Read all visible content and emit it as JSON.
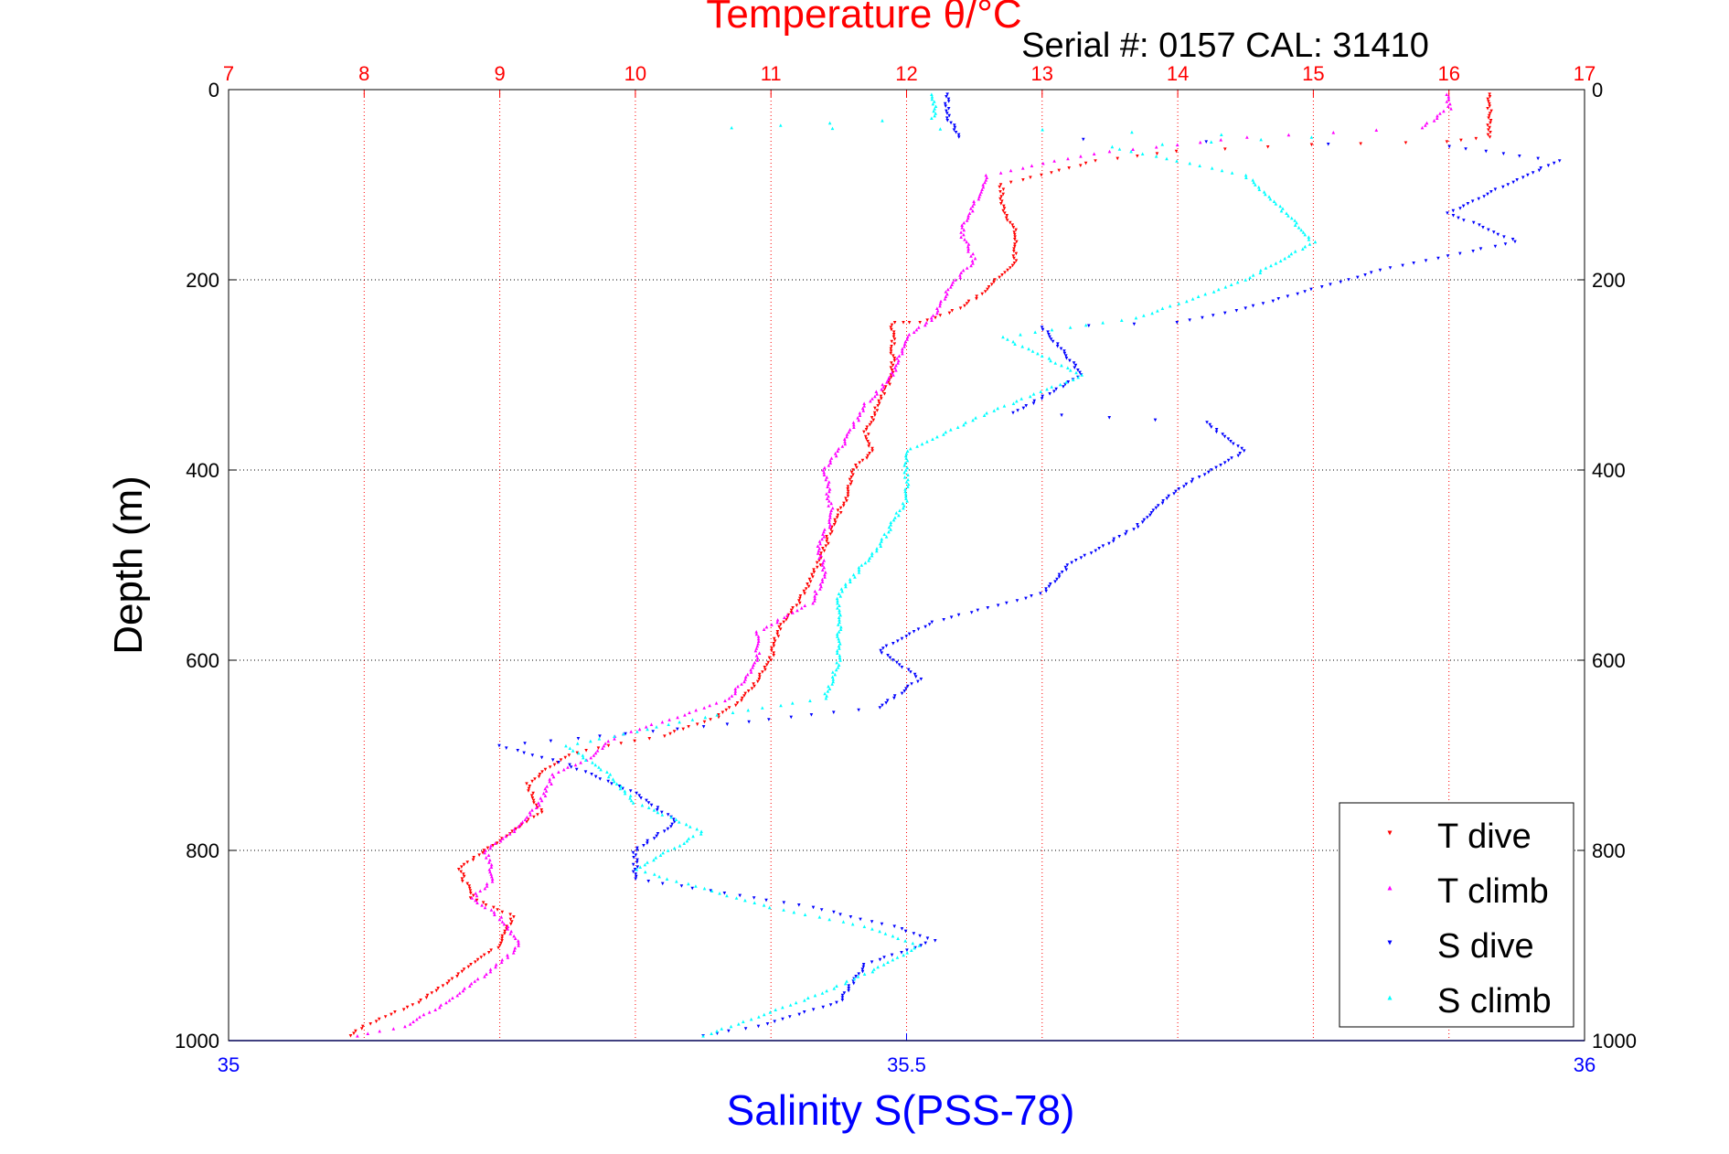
{
  "chart_data": {
    "type": "scatter",
    "title": "Temperature θ/°C",
    "subtitle": "Serial #: 0157  CAL: 31410",
    "ylabel": "Depth (m)",
    "xlabel": "Salinity S(PSS-78)",
    "y_axis": {
      "range": [
        0,
        1000
      ],
      "inverted": true,
      "ticks": [
        0,
        200,
        400,
        600,
        800,
        1000
      ],
      "grid": true
    },
    "x_temperature_axis": {
      "position": "top",
      "range": [
        7,
        17
      ],
      "ticks": [
        7,
        8,
        9,
        10,
        11,
        12,
        13,
        14,
        15,
        16,
        17
      ],
      "grid": true,
      "color": "#ff0000"
    },
    "x_salinity_axis": {
      "position": "bottom",
      "range": [
        35,
        36
      ],
      "ticks": [
        35,
        35.5,
        36
      ],
      "tick_labels": [
        "35",
        "35.5",
        "36"
      ],
      "color": "#0000ff"
    },
    "legend": {
      "position": "bottom-right",
      "entries": [
        "T dive",
        "T climb",
        "S dive",
        "S climb"
      ]
    },
    "series": [
      {
        "name": "T dive",
        "axis": "temperature",
        "color": "#ff0000",
        "marker": "down-triangle",
        "points": [
          [
            16.3,
            5
          ],
          [
            16.3,
            50
          ],
          [
            16.0,
            55
          ],
          [
            15.0,
            58
          ],
          [
            14.0,
            65
          ],
          [
            13.4,
            75
          ],
          [
            13.0,
            90
          ],
          [
            12.7,
            100
          ],
          [
            12.7,
            120
          ],
          [
            12.8,
            150
          ],
          [
            12.8,
            180
          ],
          [
            12.6,
            210
          ],
          [
            12.4,
            230
          ],
          [
            12.1,
            245
          ],
          [
            11.9,
            245
          ],
          [
            11.9,
            300
          ],
          [
            11.8,
            330
          ],
          [
            11.7,
            360
          ],
          [
            11.75,
            380
          ],
          [
            11.6,
            400
          ],
          [
            11.55,
            430
          ],
          [
            11.45,
            460
          ],
          [
            11.35,
            500
          ],
          [
            11.2,
            540
          ],
          [
            11.05,
            570
          ],
          [
            11.0,
            600
          ],
          [
            10.8,
            640
          ],
          [
            10.6,
            660
          ],
          [
            10.2,
            680
          ],
          [
            9.8,
            690
          ],
          [
            9.5,
            700
          ],
          [
            9.2,
            730
          ],
          [
            9.3,
            760
          ],
          [
            9.0,
            790
          ],
          [
            8.7,
            820
          ],
          [
            8.8,
            850
          ],
          [
            9.1,
            870
          ],
          [
            9.0,
            900
          ],
          [
            8.7,
            930
          ],
          [
            8.4,
            960
          ],
          [
            8.0,
            985
          ],
          [
            7.9,
            995
          ]
        ]
      },
      {
        "name": "T climb",
        "axis": "temperature",
        "color": "#ff00ff",
        "marker": "up-triangle",
        "points": [
          [
            16.0,
            5
          ],
          [
            16.0,
            20
          ],
          [
            15.8,
            40
          ],
          [
            14.5,
            50
          ],
          [
            14.0,
            58
          ],
          [
            13.5,
            65
          ],
          [
            13.1,
            75
          ],
          [
            12.6,
            90
          ],
          [
            12.5,
            120
          ],
          [
            12.4,
            150
          ],
          [
            12.5,
            180
          ],
          [
            12.3,
            210
          ],
          [
            12.2,
            240
          ],
          [
            12.0,
            260
          ],
          [
            11.9,
            300
          ],
          [
            11.7,
            330
          ],
          [
            11.55,
            370
          ],
          [
            11.4,
            400
          ],
          [
            11.45,
            450
          ],
          [
            11.35,
            480
          ],
          [
            11.4,
            510
          ],
          [
            11.3,
            540
          ],
          [
            10.9,
            570
          ],
          [
            10.9,
            600
          ],
          [
            10.7,
            640
          ],
          [
            10.3,
            660
          ],
          [
            9.85,
            680
          ],
          [
            9.7,
            700
          ],
          [
            9.4,
            720
          ],
          [
            9.3,
            750
          ],
          [
            9.1,
            780
          ],
          [
            8.9,
            800
          ],
          [
            8.95,
            830
          ],
          [
            8.8,
            850
          ],
          [
            9.0,
            870
          ],
          [
            9.15,
            900
          ],
          [
            8.9,
            930
          ],
          [
            8.6,
            960
          ],
          [
            8.3,
            985
          ],
          [
            7.95,
            995
          ]
        ]
      },
      {
        "name": "S dive",
        "axis": "salinity",
        "color": "#0000ff",
        "marker": "down-triangle",
        "points": [
          [
            35.53,
            5
          ],
          [
            35.53,
            30
          ],
          [
            35.54,
            50
          ],
          [
            35.9,
            60
          ],
          [
            35.98,
            75
          ],
          [
            35.95,
            95
          ],
          [
            35.9,
            130
          ],
          [
            35.95,
            160
          ],
          [
            35.85,
            190
          ],
          [
            35.8,
            210
          ],
          [
            35.75,
            230
          ],
          [
            35.7,
            245
          ],
          [
            35.6,
            250
          ],
          [
            35.63,
            300
          ],
          [
            35.58,
            340
          ],
          [
            35.72,
            350
          ],
          [
            35.75,
            380
          ],
          [
            35.7,
            420
          ],
          [
            35.67,
            460
          ],
          [
            35.62,
            500
          ],
          [
            35.6,
            530
          ],
          [
            35.52,
            560
          ],
          [
            35.48,
            590
          ],
          [
            35.51,
            620
          ],
          [
            35.48,
            650
          ],
          [
            35.35,
            670
          ],
          [
            35.2,
            690
          ],
          [
            35.25,
            710
          ],
          [
            35.3,
            740
          ],
          [
            35.33,
            770
          ],
          [
            35.3,
            800
          ],
          [
            35.3,
            830
          ],
          [
            35.43,
            860
          ],
          [
            35.49,
            880
          ],
          [
            35.52,
            895
          ],
          [
            35.47,
            920
          ],
          [
            35.45,
            960
          ],
          [
            35.39,
            985
          ],
          [
            35.35,
            995
          ]
        ]
      },
      {
        "name": "S climb",
        "axis": "salinity",
        "color": "#00ffff",
        "marker": "up-triangle",
        "points": [
          [
            35.52,
            5
          ],
          [
            35.52,
            30
          ],
          [
            35.37,
            40
          ],
          [
            35.6,
            42
          ],
          [
            35.8,
            50
          ],
          [
            35.65,
            60
          ],
          [
            35.75,
            90
          ],
          [
            35.78,
            130
          ],
          [
            35.8,
            160
          ],
          [
            35.75,
            200
          ],
          [
            35.67,
            240
          ],
          [
            35.57,
            260
          ],
          [
            35.63,
            300
          ],
          [
            35.56,
            340
          ],
          [
            35.5,
            380
          ],
          [
            35.5,
            430
          ],
          [
            35.48,
            480
          ],
          [
            35.45,
            530
          ],
          [
            35.45,
            570
          ],
          [
            35.45,
            600
          ],
          [
            35.44,
            640
          ],
          [
            35.35,
            660
          ],
          [
            35.25,
            690
          ],
          [
            35.28,
            720
          ],
          [
            35.3,
            750
          ],
          [
            35.35,
            780
          ],
          [
            35.3,
            820
          ],
          [
            35.4,
            860
          ],
          [
            35.47,
            880
          ],
          [
            35.51,
            900
          ],
          [
            35.47,
            930
          ],
          [
            35.42,
            960
          ],
          [
            35.37,
            985
          ],
          [
            35.35,
            995
          ]
        ]
      }
    ]
  }
}
